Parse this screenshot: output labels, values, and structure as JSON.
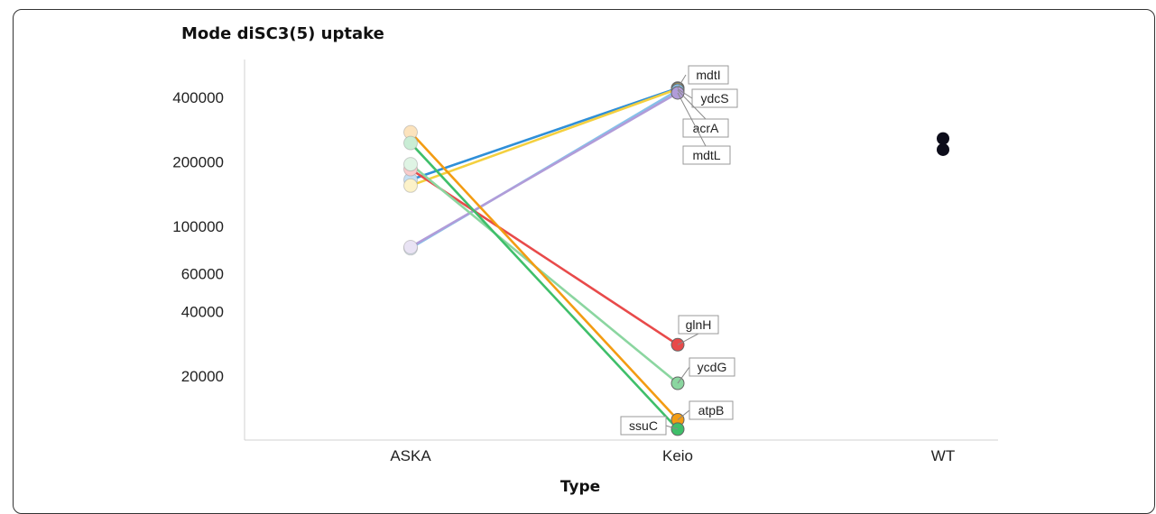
{
  "chart_data": {
    "type": "scatter",
    "title": "Mode diSC3(5) uptake",
    "xlabel": "Type",
    "ylabel": "",
    "y_scale": "log",
    "categories": [
      "ASKA",
      "Keio",
      "WT"
    ],
    "y_ticks": [
      20000,
      40000,
      60000,
      100000,
      200000,
      400000
    ],
    "y_tick_labels": [
      "20000",
      "40000",
      "60000",
      "100000",
      "200000",
      "400000"
    ],
    "ylim": [
      10000,
      660000
    ],
    "grid": false,
    "legend": "none",
    "series": [
      {
        "name": "mdtI",
        "color": "#2f8fd8",
        "values": [
          165000,
          442000
        ]
      },
      {
        "name": "ydcS",
        "color": "#f4d03f",
        "values": [
          155000,
          438000
        ]
      },
      {
        "name": "acrA",
        "color": "#85c1e9",
        "values": [
          79000,
          432000
        ]
      },
      {
        "name": "mdtL",
        "color": "#b19cd9",
        "values": [
          80000,
          420000
        ]
      },
      {
        "name": "glnH",
        "color": "#e84a4a",
        "values": [
          185000,
          28000
        ]
      },
      {
        "name": "ycdG",
        "color": "#8bd6a0",
        "values": [
          195000,
          18500
        ]
      },
      {
        "name": "atpB",
        "color": "#f39c12",
        "values": [
          275000,
          12500
        ]
      },
      {
        "name": "ssuC",
        "color": "#3fbf6a",
        "values": [
          245000,
          11300
        ]
      }
    ],
    "wt_points": [
      257000,
      228000
    ]
  }
}
